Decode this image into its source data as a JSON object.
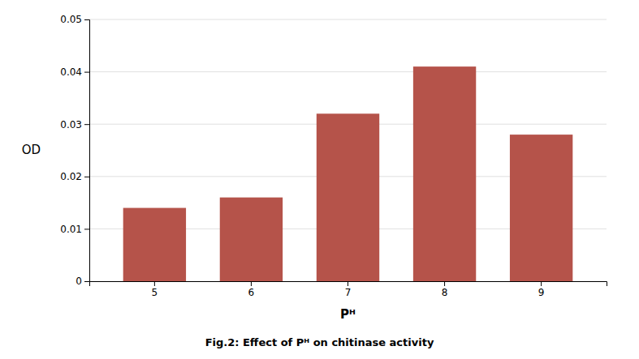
{
  "chart_data": {
    "type": "bar",
    "title": "Fig.2: Effect of Pᴴ on chitinase activity",
    "x_label": "Pᴴ",
    "y_label": "OD",
    "categories": [
      "5",
      "6",
      "7",
      "8",
      "9"
    ],
    "values": [
      0.014,
      0.016,
      0.032,
      0.041,
      0.028
    ],
    "color": "#b5534a",
    "ylim": [
      0,
      0.05
    ],
    "yticks": [
      0,
      0.01,
      0.02,
      0.03,
      0.04,
      0.05
    ],
    "grid": true
  }
}
